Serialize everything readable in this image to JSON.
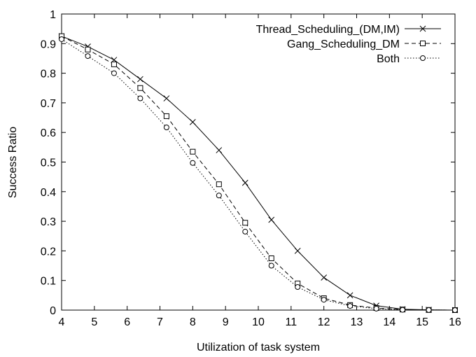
{
  "chart_data": {
    "type": "line",
    "title": "",
    "xlabel": "Utilization of task system",
    "ylabel": "Success Ratio",
    "xlim": [
      4,
      16
    ],
    "ylim": [
      0,
      1
    ],
    "xticks": [
      4,
      5,
      6,
      7,
      8,
      9,
      10,
      11,
      12,
      13,
      14,
      15,
      16
    ],
    "yticks": [
      0,
      0.1,
      0.2,
      0.3,
      0.4,
      0.5,
      0.6,
      0.7,
      0.8,
      0.9,
      1
    ],
    "ytick_labels": [
      "0",
      "0.1",
      "0.2",
      "0.3",
      "0.4",
      "0.5",
      "0.6",
      "0.7",
      "0.8",
      "0.9",
      "1"
    ],
    "xtick_labels": [
      "4",
      "5",
      "6",
      "7",
      "8",
      "9",
      "10",
      "11",
      "12",
      "13",
      "14",
      "15",
      "16"
    ],
    "grid": false,
    "legend_position": "top-right",
    "x": [
      4,
      4.8,
      5.6,
      6.4,
      7.2,
      8.0,
      8.8,
      9.6,
      10.4,
      11.2,
      12.0,
      12.8,
      13.6,
      14.4,
      15.2,
      16.0
    ],
    "series": [
      {
        "name": "Thread_Scheduling_(DM,IM)",
        "style": "solid",
        "marker": "x",
        "values": [
          0.925,
          0.89,
          0.845,
          0.78,
          0.715,
          0.635,
          0.54,
          0.43,
          0.305,
          0.2,
          0.11,
          0.05,
          0.015,
          0.003,
          0.001,
          0.0
        ]
      },
      {
        "name": "Gang_Scheduling_DM",
        "style": "dashed",
        "marker": "square",
        "values": [
          0.925,
          0.88,
          0.83,
          0.75,
          0.655,
          0.535,
          0.425,
          0.295,
          0.175,
          0.09,
          0.04,
          0.017,
          0.007,
          0.002,
          0.0005,
          0.0
        ]
      },
      {
        "name": "Both",
        "style": "dotted",
        "marker": "circle",
        "values": [
          0.915,
          0.858,
          0.8,
          0.715,
          0.617,
          0.497,
          0.387,
          0.265,
          0.15,
          0.078,
          0.035,
          0.014,
          0.005,
          0.001,
          0.0003,
          0.0
        ]
      }
    ],
    "colors": {
      "line": "#000000",
      "background": "#ffffff"
    }
  }
}
